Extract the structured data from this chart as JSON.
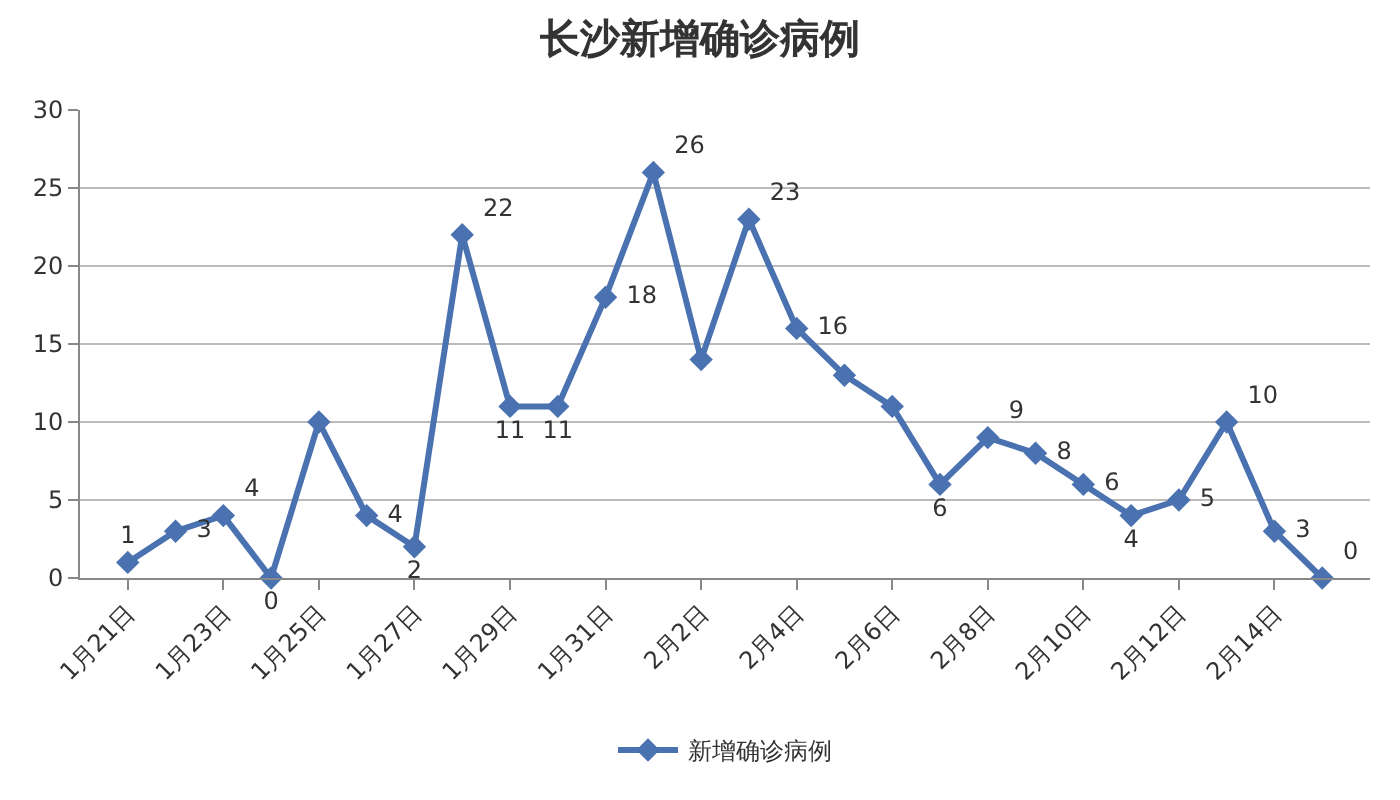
{
  "chart_data": {
    "type": "line",
    "title": "长沙新增确诊病例",
    "x": [
      "--01-21",
      "--01-22",
      "--01-23",
      "--01-24",
      "--01-25",
      "--01-26",
      "--01-27",
      "--01-28",
      "--01-29",
      "--01-30",
      "--01-31",
      "--02-01",
      "--02-02",
      "--02-03",
      "--02-04",
      "--02-05",
      "--02-06",
      "--02-07",
      "--02-08",
      "--02-09",
      "--02-10",
      "--02-11",
      "--02-12",
      "--02-13",
      "--02-14",
      "--02-15"
    ],
    "series": [
      {
        "name": "新增确诊病例",
        "color": "#4a72b0",
        "values": [
          1,
          3,
          4,
          0,
          10,
          4,
          2,
          22,
          11,
          11,
          18,
          26,
          14,
          23,
          16,
          13,
          11,
          6,
          9,
          8,
          6,
          4,
          5,
          10,
          3,
          0
        ],
        "value_labels": [
          "1",
          "3",
          "4",
          "0",
          null,
          "4",
          "2",
          "22",
          "11",
          "11",
          "18",
          "26",
          null,
          "23",
          "16",
          null,
          null,
          "6",
          "9",
          "8",
          "6",
          "4",
          "5",
          "10",
          "3",
          "0"
        ]
      }
    ],
    "xlim": [
      "--01-20",
      "--02-16"
    ],
    "xticks": [
      {
        "value": "--01-21",
        "label": "1月21日"
      },
      {
        "value": "--01-23",
        "label": "1月23日"
      },
      {
        "value": "--01-25",
        "label": "1月25日"
      },
      {
        "value": "--01-27",
        "label": "1月27日"
      },
      {
        "value": "--01-29",
        "label": "1月29日"
      },
      {
        "value": "--01-31",
        "label": "1月31日"
      },
      {
        "value": "--02-02",
        "label": "2月2日"
      },
      {
        "value": "--02-04",
        "label": "2月4日"
      },
      {
        "value": "--02-06",
        "label": "2月6日"
      },
      {
        "value": "--02-08",
        "label": "2月8日"
      },
      {
        "value": "--02-10",
        "label": "2月10日"
      },
      {
        "value": "--02-12",
        "label": "2月12日"
      },
      {
        "value": "--02-14",
        "label": "2月14日"
      }
    ],
    "ylim": [
      0,
      30
    ],
    "yticks": [
      0,
      5,
      10,
      15,
      20,
      25,
      30
    ],
    "grid": "y",
    "legend": "bottom",
    "marker": "diamond",
    "line_style": "solid"
  }
}
